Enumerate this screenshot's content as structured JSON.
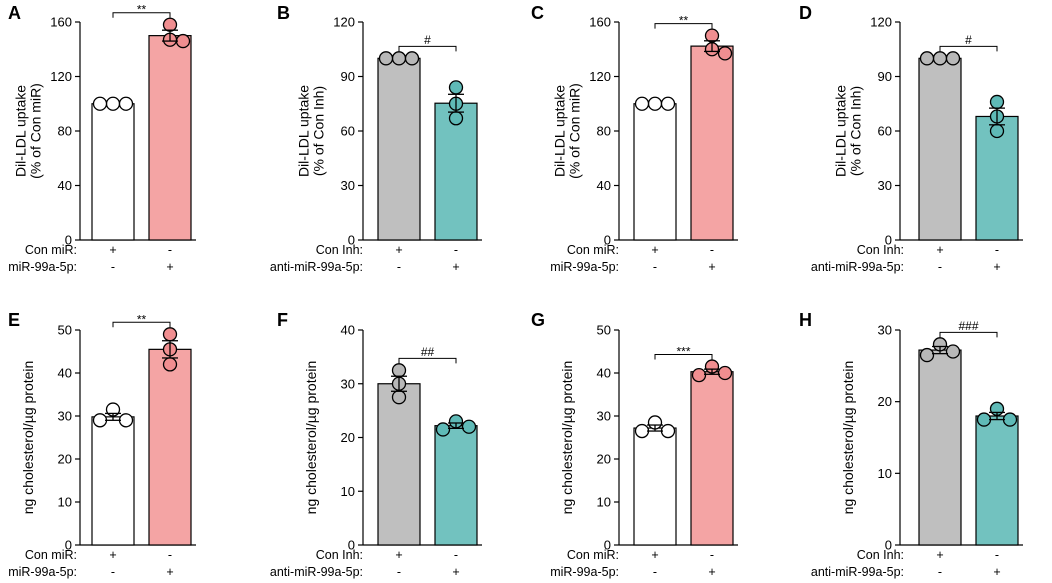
{
  "chart_data": [
    {
      "panel": "A",
      "type": "bar",
      "ylabel": [
        "Dil-LDL uptake",
        "(% of Con miR)"
      ],
      "ylim": [
        0,
        160
      ],
      "yticks": [
        0,
        40,
        80,
        120,
        160
      ],
      "conditions": [
        {
          "label": "Con miR:",
          "values": [
            "+",
            "-"
          ]
        },
        {
          "label": "miR-99a-5p:",
          "values": [
            "-",
            "+"
          ]
        }
      ],
      "series": [
        {
          "mean": 100,
          "sem": 0,
          "points": [
            100,
            100,
            100
          ],
          "color": "#ffffff",
          "point_color": "#ffffff"
        },
        {
          "mean": 150,
          "sem": 4,
          "points": [
            158,
            147,
            146
          ],
          "color": "#f4a4a4",
          "point_color": "#f08e90"
        }
      ],
      "significance": "**"
    },
    {
      "panel": "B",
      "type": "bar",
      "ylabel": [
        "Dil-LDL uptake",
        "(% of Con Inh)"
      ],
      "ylim": [
        0,
        120
      ],
      "yticks": [
        0,
        30,
        60,
        90,
        120
      ],
      "conditions": [
        {
          "label": "Con Inh:",
          "values": [
            "+",
            "-"
          ]
        },
        {
          "label": "anti-miR-99a-5p:",
          "values": [
            "-",
            "+"
          ]
        }
      ],
      "series": [
        {
          "mean": 100,
          "sem": 0,
          "points": [
            100,
            100,
            100
          ],
          "color": "#bfbfbf",
          "point_color": "#b8b8b8"
        },
        {
          "mean": 75.3,
          "sem": 4.9,
          "points": [
            84,
            75,
            67
          ],
          "color": "#72c2bf",
          "point_color": "#5fbab7"
        }
      ],
      "significance": "#"
    },
    {
      "panel": "C",
      "type": "bar",
      "ylabel": [
        "Dil-LDL uptake",
        "(% of Con miR)"
      ],
      "ylim": [
        0,
        160
      ],
      "yticks": [
        0,
        40,
        80,
        120,
        160
      ],
      "conditions": [
        {
          "label": "Con miR:",
          "values": [
            "+",
            "-"
          ]
        },
        {
          "label": "miR-99a-5p:",
          "values": [
            "-",
            "+"
          ]
        }
      ],
      "series": [
        {
          "mean": 100,
          "sem": 0,
          "points": [
            100,
            100,
            100
          ],
          "color": "#ffffff",
          "point_color": "#ffffff"
        },
        {
          "mean": 142.3,
          "sem": 3.9,
          "points": [
            150,
            140,
            137
          ],
          "color": "#f4a4a4",
          "point_color": "#f08e90"
        }
      ],
      "significance": "**"
    },
    {
      "panel": "D",
      "type": "bar",
      "ylabel": [
        "Dil-LDL uptake",
        "(% of Con Inh)"
      ],
      "ylim": [
        0,
        120
      ],
      "yticks": [
        0,
        30,
        60,
        90,
        120
      ],
      "conditions": [
        {
          "label": "Con Inh:",
          "values": [
            "+",
            "-"
          ]
        },
        {
          "label": "anti-miR-99a-5p:",
          "values": [
            "-",
            "+"
          ]
        }
      ],
      "series": [
        {
          "mean": 100,
          "sem": 0,
          "points": [
            100,
            100,
            100
          ],
          "color": "#bfbfbf",
          "point_color": "#b8b8b8"
        },
        {
          "mean": 68,
          "sem": 4.6,
          "points": [
            76,
            68,
            60
          ],
          "color": "#72c2bf",
          "point_color": "#5fbab7"
        }
      ],
      "significance": "#"
    },
    {
      "panel": "E",
      "type": "bar",
      "ylabel": [
        "ng cholesterol/µg protein"
      ],
      "ylim": [
        0,
        50
      ],
      "yticks": [
        0,
        10,
        20,
        30,
        40,
        50
      ],
      "conditions": [
        {
          "label": "Con miR:",
          "values": [
            "+",
            "-"
          ]
        },
        {
          "label": "miR-99a-5p:",
          "values": [
            "-",
            "+"
          ]
        }
      ],
      "series": [
        {
          "mean": 29.8,
          "sem": 0.8,
          "points": [
            31.5,
            29,
            29
          ],
          "color": "#ffffff",
          "point_color": "#ffffff"
        },
        {
          "mean": 45.5,
          "sem": 2,
          "points": [
            49,
            45.5,
            42
          ],
          "color": "#f4a4a4",
          "point_color": "#f08e90"
        }
      ],
      "significance": "**"
    },
    {
      "panel": "F",
      "type": "bar",
      "ylabel": [
        "ng cholesterol/µg protein"
      ],
      "ylim": [
        0,
        40
      ],
      "yticks": [
        0,
        10,
        20,
        30,
        40
      ],
      "conditions": [
        {
          "label": "Con Inh:",
          "values": [
            "+",
            "-"
          ]
        },
        {
          "label": "anti-miR-99a-5p:",
          "values": [
            "-",
            "+"
          ]
        }
      ],
      "series": [
        {
          "mean": 30,
          "sem": 1.4,
          "points": [
            32.5,
            30,
            27.5
          ],
          "color": "#bfbfbf",
          "point_color": "#b8b8b8"
        },
        {
          "mean": 22.2,
          "sem": 0.5,
          "points": [
            23,
            22,
            21.5
          ],
          "color": "#72c2bf",
          "point_color": "#5fbab7"
        }
      ],
      "significance": "##"
    },
    {
      "panel": "G",
      "type": "bar",
      "ylabel": [
        "ng cholesterol/µg protein"
      ],
      "ylim": [
        0,
        50
      ],
      "yticks": [
        0,
        10,
        20,
        30,
        40,
        50
      ],
      "conditions": [
        {
          "label": "Con miR:",
          "values": [
            "+",
            "-"
          ]
        },
        {
          "label": "miR-99a-5p:",
          "values": [
            "-",
            "+"
          ]
        }
      ],
      "series": [
        {
          "mean": 27.2,
          "sem": 0.7,
          "points": [
            28.5,
            26.5,
            26.5
          ],
          "color": "#ffffff",
          "point_color": "#ffffff"
        },
        {
          "mean": 40.3,
          "sem": 0.6,
          "points": [
            41.5,
            40,
            39.5
          ],
          "color": "#f4a4a4",
          "point_color": "#f08e90"
        }
      ],
      "significance": "***"
    },
    {
      "panel": "H",
      "type": "bar",
      "ylabel": [
        "ng cholesterol/µg protein"
      ],
      "ylim": [
        0,
        30
      ],
      "yticks": [
        0,
        10,
        20,
        30
      ],
      "conditions": [
        {
          "label": "Con Inh:",
          "values": [
            "+",
            "-"
          ]
        },
        {
          "label": "anti-miR-99a-5p:",
          "values": [
            "-",
            "+"
          ]
        }
      ],
      "series": [
        {
          "mean": 27.2,
          "sem": 0.5,
          "points": [
            28,
            27,
            26.5
          ],
          "color": "#bfbfbf",
          "point_color": "#b8b8b8"
        },
        {
          "mean": 18,
          "sem": 0.5,
          "points": [
            19,
            17.5,
            17.5
          ],
          "color": "#72c2bf",
          "point_color": "#5fbab7"
        }
      ],
      "significance": "###"
    }
  ]
}
